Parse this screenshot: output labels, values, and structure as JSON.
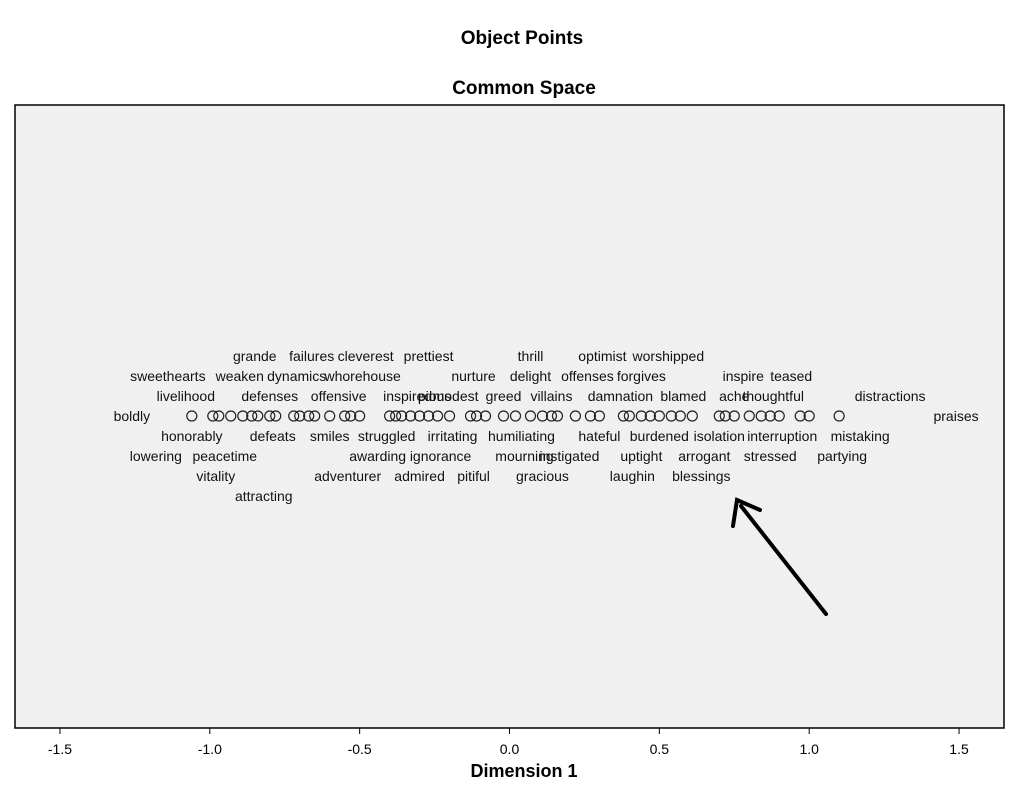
{
  "chart_data": {
    "type": "scatter",
    "title": "Object Points",
    "subtitle": "Common Space",
    "xlabel": "Dimension 1",
    "ylabel": "",
    "xlim": [
      -1.65,
      1.65
    ],
    "xticks": [
      -1.5,
      -1.0,
      -0.5,
      0.0,
      0.5,
      1.0,
      1.5
    ],
    "xtick_labels": [
      "-1.5",
      "-1.0",
      "-0.5",
      "0.0",
      "0.5",
      "1.0",
      "1.5"
    ],
    "grid": false,
    "legend": "none",
    "plot_background": "#f0f0f0",
    "points": [
      {
        "x": -1.06
      },
      {
        "x": -0.99
      },
      {
        "x": -0.97
      },
      {
        "x": -0.93
      },
      {
        "x": -0.89
      },
      {
        "x": -0.86
      },
      {
        "x": -0.84
      },
      {
        "x": -0.8
      },
      {
        "x": -0.78
      },
      {
        "x": -0.72
      },
      {
        "x": -0.7
      },
      {
        "x": -0.67
      },
      {
        "x": -0.65
      },
      {
        "x": -0.6
      },
      {
        "x": -0.55
      },
      {
        "x": -0.53
      },
      {
        "x": -0.5
      },
      {
        "x": -0.4
      },
      {
        "x": -0.38
      },
      {
        "x": -0.36
      },
      {
        "x": -0.33
      },
      {
        "x": -0.3
      },
      {
        "x": -0.27
      },
      {
        "x": -0.24
      },
      {
        "x": -0.2
      },
      {
        "x": -0.13
      },
      {
        "x": -0.11
      },
      {
        "x": -0.08
      },
      {
        "x": -0.02
      },
      {
        "x": 0.02
      },
      {
        "x": 0.07
      },
      {
        "x": 0.11
      },
      {
        "x": 0.14
      },
      {
        "x": 0.16
      },
      {
        "x": 0.22
      },
      {
        "x": 0.27
      },
      {
        "x": 0.3
      },
      {
        "x": 0.38
      },
      {
        "x": 0.4
      },
      {
        "x": 0.44
      },
      {
        "x": 0.47
      },
      {
        "x": 0.5
      },
      {
        "x": 0.54
      },
      {
        "x": 0.57
      },
      {
        "x": 0.61
      },
      {
        "x": 0.7
      },
      {
        "x": 0.72
      },
      {
        "x": 0.75
      },
      {
        "x": 0.8
      },
      {
        "x": 0.84
      },
      {
        "x": 0.87
      },
      {
        "x": 0.9
      },
      {
        "x": 0.97
      },
      {
        "x": 1.0
      },
      {
        "x": 1.1
      }
    ],
    "point_labels": [
      {
        "text": "grande",
        "x": -0.85,
        "row": -3
      },
      {
        "text": "failures",
        "x": -0.66,
        "row": -3
      },
      {
        "text": "cleverest",
        "x": -0.48,
        "row": -3
      },
      {
        "text": "prettiest",
        "x": -0.27,
        "row": -3
      },
      {
        "text": "thrill",
        "x": 0.07,
        "row": -3
      },
      {
        "text": "optimist",
        "x": 0.31,
        "row": -3
      },
      {
        "text": "worshipped",
        "x": 0.53,
        "row": -3
      },
      {
        "text": "sweethearts",
        "x": -1.14,
        "row": -2
      },
      {
        "text": "weaken",
        "x": -0.9,
        "row": -2
      },
      {
        "text": "dynamics",
        "x": -0.71,
        "row": -2
      },
      {
        "text": "whorehouse",
        "x": -0.49,
        "row": -2
      },
      {
        "text": "nurture",
        "x": -0.12,
        "row": -2
      },
      {
        "text": "delight",
        "x": 0.07,
        "row": -2
      },
      {
        "text": "offenses",
        "x": 0.26,
        "row": -2
      },
      {
        "text": "forgives",
        "x": 0.44,
        "row": -2
      },
      {
        "text": "inspire",
        "x": 0.78,
        "row": -2
      },
      {
        "text": "teased",
        "x": 0.94,
        "row": -2
      },
      {
        "text": "livelihood",
        "x": -1.08,
        "row": -1
      },
      {
        "text": "defenses",
        "x": -0.8,
        "row": -1
      },
      {
        "text": "offensive",
        "x": -0.57,
        "row": -1
      },
      {
        "text": "inspired",
        "x": -0.34,
        "row": -1
      },
      {
        "text": "pious",
        "x": -0.25,
        "row": -1
      },
      {
        "text": "modest",
        "x": -0.18,
        "row": -1
      },
      {
        "text": "greed",
        "x": -0.02,
        "row": -1
      },
      {
        "text": "villains",
        "x": 0.14,
        "row": -1
      },
      {
        "text": "damnation",
        "x": 0.37,
        "row": -1
      },
      {
        "text": "blamed",
        "x": 0.58,
        "row": -1
      },
      {
        "text": "ache",
        "x": 0.75,
        "row": -1
      },
      {
        "text": "thoughtful",
        "x": 0.88,
        "row": -1
      },
      {
        "text": "distractions",
        "x": 1.27,
        "row": -1
      },
      {
        "text": "boldly",
        "x": -1.26,
        "row": 0
      },
      {
        "text": "praises",
        "x": 1.49,
        "row": 0
      },
      {
        "text": "honorably",
        "x": -1.06,
        "row": 1
      },
      {
        "text": "defeats",
        "x": -0.79,
        "row": 1
      },
      {
        "text": "smiles",
        "x": -0.6,
        "row": 1
      },
      {
        "text": "struggled",
        "x": -0.41,
        "row": 1
      },
      {
        "text": "irritating",
        "x": -0.19,
        "row": 1
      },
      {
        "text": "humiliating",
        "x": 0.04,
        "row": 1
      },
      {
        "text": "hateful",
        "x": 0.3,
        "row": 1
      },
      {
        "text": "burdened",
        "x": 0.5,
        "row": 1
      },
      {
        "text": "isolation",
        "x": 0.7,
        "row": 1
      },
      {
        "text": "interruption",
        "x": 0.91,
        "row": 1
      },
      {
        "text": "mistaking",
        "x": 1.17,
        "row": 1
      },
      {
        "text": "lowering",
        "x": -1.18,
        "row": 2
      },
      {
        "text": "peacetime",
        "x": -0.95,
        "row": 2
      },
      {
        "text": "awarding",
        "x": -0.44,
        "row": 2
      },
      {
        "text": "ignorance",
        "x": -0.23,
        "row": 2
      },
      {
        "text": "mourning",
        "x": 0.05,
        "row": 2
      },
      {
        "text": "instigated",
        "x": 0.2,
        "row": 2
      },
      {
        "text": "uptight",
        "x": 0.44,
        "row": 2
      },
      {
        "text": "arrogant",
        "x": 0.65,
        "row": 2
      },
      {
        "text": "stressed",
        "x": 0.87,
        "row": 2
      },
      {
        "text": "partying",
        "x": 1.11,
        "row": 2
      },
      {
        "text": "vitality",
        "x": -0.98,
        "row": 3
      },
      {
        "text": "adventurer",
        "x": -0.54,
        "row": 3
      },
      {
        "text": "admired",
        "x": -0.3,
        "row": 3
      },
      {
        "text": "pitiful",
        "x": -0.12,
        "row": 3
      },
      {
        "text": "gracious",
        "x": 0.11,
        "row": 3
      },
      {
        "text": "laughin",
        "x": 0.41,
        "row": 3
      },
      {
        "text": "blessings",
        "x": 0.64,
        "row": 3
      },
      {
        "text": "attracting",
        "x": -0.82,
        "row": 4
      }
    ],
    "annotation": {
      "type": "arrow",
      "target_label": "blessings"
    }
  }
}
